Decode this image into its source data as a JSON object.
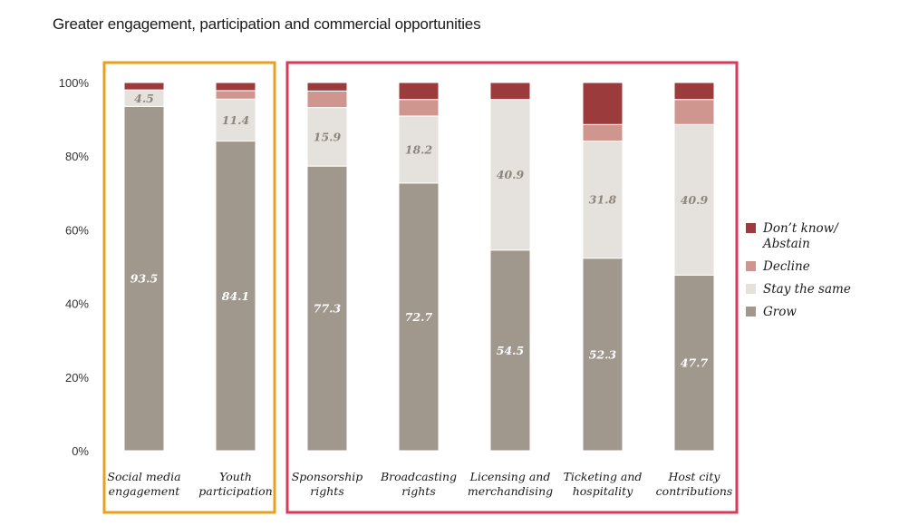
{
  "chart_data": {
    "type": "bar",
    "stacked": true,
    "title": "Greater engagement, participation and commercial opportunities",
    "categories": [
      [
        "Social media",
        "engagement"
      ],
      [
        "Youth",
        "participation"
      ],
      [
        "Sponsorship",
        "rights"
      ],
      [
        "Broadcasting",
        "rights"
      ],
      [
        "Licensing and",
        "merchandising"
      ],
      [
        "Ticketing and",
        "hospitality"
      ],
      [
        "Host city",
        "contributions"
      ]
    ],
    "series": [
      {
        "name": "Grow",
        "color": "#a0978d",
        "label_color": "#ffffff",
        "values": [
          93.5,
          84.1,
          77.3,
          72.7,
          54.5,
          52.3,
          47.7
        ]
      },
      {
        "name": "Stay the same",
        "color": "#e5e2dd",
        "label_color": "#8e867d",
        "values": [
          4.5,
          11.4,
          15.9,
          18.2,
          40.9,
          31.8,
          40.9
        ]
      },
      {
        "name": "Decline",
        "color": "#cf9690",
        "values": [
          0,
          2.3,
          4.5,
          4.5,
          0,
          4.5,
          6.8
        ]
      },
      {
        "name": "Don’t know/\nAbstain",
        "color": "#9c3b3b",
        "values": [
          2.0,
          2.2,
          2.3,
          4.6,
          4.6,
          11.4,
          4.6
        ]
      }
    ],
    "data_labels": [
      [
        "93.5",
        "84.1",
        "77.3",
        "72.7",
        "54.5",
        "52.3",
        "47.7"
      ],
      [
        "4.5",
        "11.4",
        "15.9",
        "18.2",
        "40.9",
        "31.8",
        "40.9"
      ]
    ],
    "ylim": [
      0,
      100
    ],
    "yticks": [
      "0%",
      "20%",
      "40%",
      "60%",
      "80%",
      "100%"
    ],
    "ytick_values": [
      0,
      20,
      40,
      60,
      80,
      100
    ],
    "legend_position": "right",
    "groups": [
      {
        "name": "engagement-participation",
        "color": "#e8a020",
        "categories": [
          0,
          1
        ]
      },
      {
        "name": "commercial",
        "color": "#d63a5c",
        "categories": [
          2,
          3,
          4,
          5,
          6
        ]
      }
    ]
  }
}
